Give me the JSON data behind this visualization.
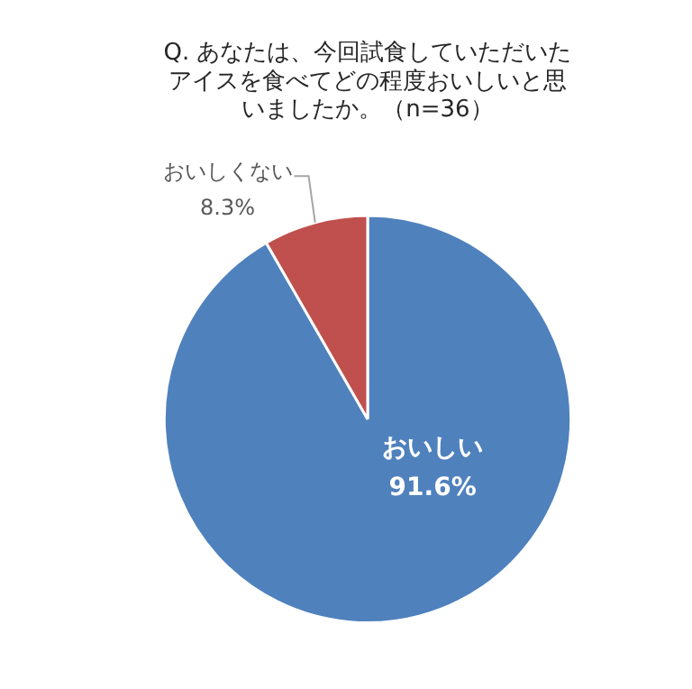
{
  "chart_data": {
    "type": "pie",
    "title": "Q. あなたは、今回試食していただいたアイスを食べてどの程度おいしいと思いましたか。（n=36）",
    "categories": [
      "おいしい",
      "おいしくない"
    ],
    "values": [
      91.6,
      8.3
    ],
    "value_labels": [
      "91.6%",
      "8.3%"
    ],
    "colors": [
      "#4f81bd",
      "#c0504d"
    ],
    "legend": false
  }
}
